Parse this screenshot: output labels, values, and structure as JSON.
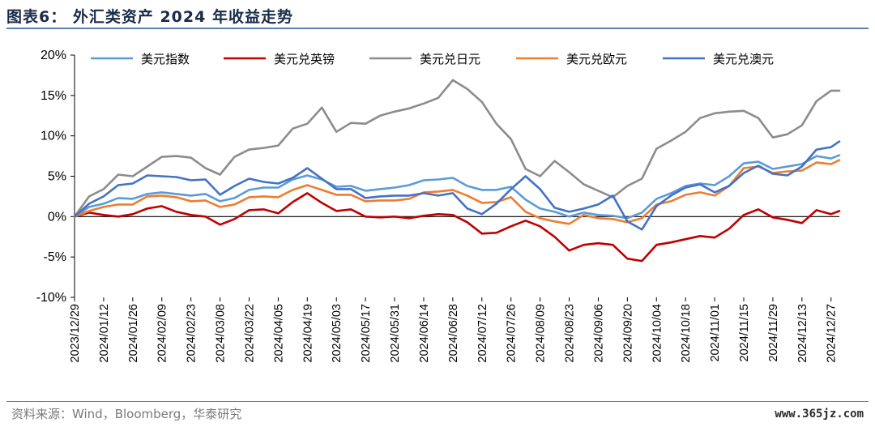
{
  "header": {
    "title": "图表6：  外汇类资产 2024 年收益走势"
  },
  "footer": {
    "source": "资料来源：Wind，Bloomberg，华泰研究",
    "watermark": "www.365jz.com"
  },
  "chart_data": {
    "type": "line",
    "title": "",
    "xlabel": "",
    "ylabel": "",
    "ylim": [
      -10,
      20
    ],
    "yticks": [
      "20%",
      "15%",
      "10%",
      "5%",
      "0%",
      "-5%",
      "-10%"
    ],
    "yvalues": [
      20,
      15,
      10,
      5,
      0,
      -5,
      -10
    ],
    "x_tick_labels": [
      "2023/12/29",
      "2024/01/12",
      "2024/01/26",
      "2024/02/09",
      "2024/02/23",
      "2024/03/08",
      "2024/03/22",
      "2024/04/05",
      "2024/04/19",
      "2024/05/03",
      "2024/05/17",
      "2024/05/31",
      "2024/06/14",
      "2024/06/28",
      "2024/07/12",
      "2024/07/26",
      "2024/08/09",
      "2024/08/23",
      "2024/09/06",
      "2024/09/20",
      "2024/10/04",
      "2024/10/18",
      "2024/11/01",
      "2024/11/15",
      "2024/11/29",
      "2024/12/13",
      "2024/12/27"
    ],
    "x_end": "2024/12/31",
    "legend_position": "top",
    "grid": false,
    "series": [
      {
        "name": "美元指数",
        "color": "#5b9bd5",
        "x": [
          "2023/12/29",
          "2024/01/05",
          "2024/01/12",
          "2024/01/19",
          "2024/01/26",
          "2024/02/02",
          "2024/02/09",
          "2024/02/16",
          "2024/02/23",
          "2024/03/01",
          "2024/03/08",
          "2024/03/15",
          "2024/03/22",
          "2024/03/29",
          "2024/04/05",
          "2024/04/12",
          "2024/04/19",
          "2024/04/26",
          "2024/05/03",
          "2024/05/10",
          "2024/05/17",
          "2024/05/24",
          "2024/05/31",
          "2024/06/07",
          "2024/06/14",
          "2024/06/21",
          "2024/06/28",
          "2024/07/05",
          "2024/07/12",
          "2024/07/19",
          "2024/07/26",
          "2024/08/02",
          "2024/08/09",
          "2024/08/16",
          "2024/08/23",
          "2024/08/30",
          "2024/09/06",
          "2024/09/13",
          "2024/09/20",
          "2024/09/27",
          "2024/10/04",
          "2024/10/11",
          "2024/10/18",
          "2024/10/25",
          "2024/11/01",
          "2024/11/08",
          "2024/11/15",
          "2024/11/22",
          "2024/11/29",
          "2024/12/06",
          "2024/12/13",
          "2024/12/20",
          "2024/12/27",
          "2024/12/31"
        ],
        "values": [
          0.0,
          1.2,
          1.6,
          2.3,
          2.2,
          2.8,
          3.0,
          2.8,
          2.6,
          2.8,
          1.9,
          2.3,
          3.3,
          3.6,
          3.6,
          4.6,
          5.1,
          4.6,
          3.7,
          3.8,
          3.2,
          3.4,
          3.6,
          3.9,
          4.5,
          4.6,
          4.8,
          3.8,
          3.3,
          3.3,
          3.7,
          2.1,
          1.0,
          0.6,
          0.0,
          0.5,
          0.2,
          0.1,
          -0.2,
          0.5,
          2.2,
          2.9,
          3.8,
          4.1,
          3.9,
          5.0,
          6.6,
          6.8,
          5.9,
          6.2,
          6.5,
          7.5,
          7.2,
          7.6
        ]
      },
      {
        "name": "美元兑英镑",
        "color": "#c00000",
        "x": [
          "2023/12/29",
          "2024/01/05",
          "2024/01/12",
          "2024/01/19",
          "2024/01/26",
          "2024/02/02",
          "2024/02/09",
          "2024/02/16",
          "2024/02/23",
          "2024/03/01",
          "2024/03/08",
          "2024/03/15",
          "2024/03/22",
          "2024/03/29",
          "2024/04/05",
          "2024/04/12",
          "2024/04/19",
          "2024/04/26",
          "2024/05/03",
          "2024/05/10",
          "2024/05/17",
          "2024/05/24",
          "2024/05/31",
          "2024/06/07",
          "2024/06/14",
          "2024/06/21",
          "2024/06/28",
          "2024/07/05",
          "2024/07/12",
          "2024/07/19",
          "2024/07/26",
          "2024/08/02",
          "2024/08/09",
          "2024/08/16",
          "2024/08/23",
          "2024/08/30",
          "2024/09/06",
          "2024/09/13",
          "2024/09/20",
          "2024/09/27",
          "2024/10/04",
          "2024/10/11",
          "2024/10/18",
          "2024/10/25",
          "2024/11/01",
          "2024/11/08",
          "2024/11/15",
          "2024/11/22",
          "2024/11/29",
          "2024/12/06",
          "2024/12/13",
          "2024/12/20",
          "2024/12/27",
          "2024/12/31"
        ],
        "values": [
          0.0,
          0.5,
          0.2,
          0.0,
          0.3,
          1.0,
          1.3,
          0.6,
          0.2,
          0.0,
          -1.0,
          -0.3,
          0.8,
          0.9,
          0.4,
          1.8,
          2.9,
          1.7,
          0.7,
          0.9,
          0.0,
          -0.1,
          0.0,
          -0.2,
          0.1,
          0.3,
          0.2,
          -0.7,
          -2.1,
          -2.0,
          -1.2,
          -0.5,
          -1.2,
          -2.5,
          -4.2,
          -3.5,
          -3.3,
          -3.5,
          -5.2,
          -5.5,
          -3.5,
          -3.2,
          -2.8,
          -2.4,
          -2.6,
          -1.5,
          0.2,
          0.9,
          -0.1,
          -0.4,
          -0.8,
          0.8,
          0.3,
          0.7
        ]
      },
      {
        "name": "美元兑日元",
        "color": "#8c8c8c",
        "x": [
          "2023/12/29",
          "2024/01/05",
          "2024/01/12",
          "2024/01/19",
          "2024/01/26",
          "2024/02/02",
          "2024/02/09",
          "2024/02/16",
          "2024/02/23",
          "2024/03/01",
          "2024/03/08",
          "2024/03/15",
          "2024/03/22",
          "2024/03/29",
          "2024/04/05",
          "2024/04/12",
          "2024/04/19",
          "2024/04/26",
          "2024/05/03",
          "2024/05/10",
          "2024/05/17",
          "2024/05/24",
          "2024/05/31",
          "2024/06/07",
          "2024/06/14",
          "2024/06/21",
          "2024/06/28",
          "2024/07/05",
          "2024/07/12",
          "2024/07/19",
          "2024/07/26",
          "2024/08/02",
          "2024/08/09",
          "2024/08/16",
          "2024/08/23",
          "2024/08/30",
          "2024/09/06",
          "2024/09/13",
          "2024/09/20",
          "2024/09/27",
          "2024/10/04",
          "2024/10/11",
          "2024/10/18",
          "2024/10/25",
          "2024/11/01",
          "2024/11/08",
          "2024/11/15",
          "2024/11/22",
          "2024/11/29",
          "2024/12/06",
          "2024/12/13",
          "2024/12/20",
          "2024/12/27",
          "2024/12/31"
        ],
        "values": [
          0.0,
          2.5,
          3.4,
          5.2,
          5.0,
          6.2,
          7.4,
          7.5,
          7.3,
          6.0,
          5.2,
          7.4,
          8.3,
          8.5,
          8.8,
          10.9,
          11.5,
          13.5,
          10.5,
          11.6,
          11.5,
          12.5,
          13.0,
          13.4,
          14.0,
          14.7,
          16.9,
          15.8,
          14.2,
          11.5,
          9.6,
          5.9,
          5.0,
          6.9,
          5.5,
          4.0,
          3.2,
          2.4,
          3.8,
          4.7,
          8.4,
          9.4,
          10.5,
          12.2,
          12.8,
          13.0,
          13.1,
          12.2,
          9.8,
          10.2,
          11.3,
          14.3,
          15.6,
          15.6
        ]
      },
      {
        "name": "美元兑欧元",
        "color": "#ed7d31",
        "x": [
          "2023/12/29",
          "2024/01/05",
          "2024/01/12",
          "2024/01/19",
          "2024/01/26",
          "2024/02/02",
          "2024/02/09",
          "2024/02/16",
          "2024/02/23",
          "2024/03/01",
          "2024/03/08",
          "2024/03/15",
          "2024/03/22",
          "2024/03/29",
          "2024/04/05",
          "2024/04/12",
          "2024/04/19",
          "2024/04/26",
          "2024/05/03",
          "2024/05/10",
          "2024/05/17",
          "2024/05/24",
          "2024/05/31",
          "2024/06/07",
          "2024/06/14",
          "2024/06/21",
          "2024/06/28",
          "2024/07/05",
          "2024/07/12",
          "2024/07/19",
          "2024/07/26",
          "2024/08/02",
          "2024/08/09",
          "2024/08/16",
          "2024/08/23",
          "2024/08/30",
          "2024/09/06",
          "2024/09/13",
          "2024/09/20",
          "2024/09/27",
          "2024/10/04",
          "2024/10/11",
          "2024/10/18",
          "2024/10/25",
          "2024/11/01",
          "2024/11/08",
          "2024/11/15",
          "2024/11/22",
          "2024/11/29",
          "2024/12/06",
          "2024/12/13",
          "2024/12/20",
          "2024/12/27",
          "2024/12/31"
        ],
        "values": [
          0.0,
          0.7,
          1.2,
          1.5,
          1.5,
          2.5,
          2.6,
          2.4,
          1.9,
          2.0,
          1.2,
          1.5,
          2.4,
          2.5,
          2.4,
          3.3,
          3.9,
          3.3,
          2.7,
          2.7,
          1.9,
          2.0,
          2.0,
          2.2,
          3.0,
          3.1,
          3.3,
          2.6,
          1.7,
          1.8,
          2.4,
          0.6,
          -0.2,
          -0.6,
          -0.9,
          0.2,
          -0.2,
          -0.3,
          -0.7,
          -0.2,
          1.5,
          1.9,
          2.7,
          3.0,
          2.6,
          3.8,
          6.0,
          6.2,
          5.4,
          5.6,
          5.7,
          6.7,
          6.5,
          7.0
        ]
      },
      {
        "name": "美元兑澳元",
        "color": "#4472c4",
        "x": [
          "2023/12/29",
          "2024/01/05",
          "2024/01/12",
          "2024/01/19",
          "2024/01/26",
          "2024/02/02",
          "2024/02/09",
          "2024/02/16",
          "2024/02/23",
          "2024/03/01",
          "2024/03/08",
          "2024/03/15",
          "2024/03/22",
          "2024/03/29",
          "2024/04/05",
          "2024/04/12",
          "2024/04/19",
          "2024/04/26",
          "2024/05/03",
          "2024/05/10",
          "2024/05/17",
          "2024/05/24",
          "2024/05/31",
          "2024/06/07",
          "2024/06/14",
          "2024/06/21",
          "2024/06/28",
          "2024/07/05",
          "2024/07/12",
          "2024/07/19",
          "2024/07/26",
          "2024/08/02",
          "2024/08/09",
          "2024/08/16",
          "2024/08/23",
          "2024/08/30",
          "2024/09/06",
          "2024/09/13",
          "2024/09/20",
          "2024/09/27",
          "2024/10/04",
          "2024/10/11",
          "2024/10/18",
          "2024/10/25",
          "2024/11/01",
          "2024/11/08",
          "2024/11/15",
          "2024/11/22",
          "2024/11/29",
          "2024/12/06",
          "2024/12/13",
          "2024/12/20",
          "2024/12/27",
          "2024/12/31"
        ],
        "values": [
          0.0,
          1.6,
          2.5,
          3.9,
          4.1,
          5.1,
          5.0,
          4.9,
          4.5,
          4.6,
          2.7,
          3.8,
          4.7,
          4.3,
          4.1,
          4.8,
          6.0,
          4.7,
          3.4,
          3.4,
          2.3,
          2.5,
          2.6,
          2.6,
          2.9,
          2.6,
          2.9,
          1.0,
          0.3,
          1.6,
          3.4,
          5.0,
          3.4,
          1.1,
          0.6,
          1.0,
          1.5,
          2.6,
          -0.6,
          -1.6,
          1.3,
          2.6,
          3.6,
          4.0,
          3.0,
          3.8,
          5.4,
          6.3,
          5.3,
          5.1,
          6.2,
          8.3,
          8.6,
          9.3
        ]
      }
    ]
  }
}
